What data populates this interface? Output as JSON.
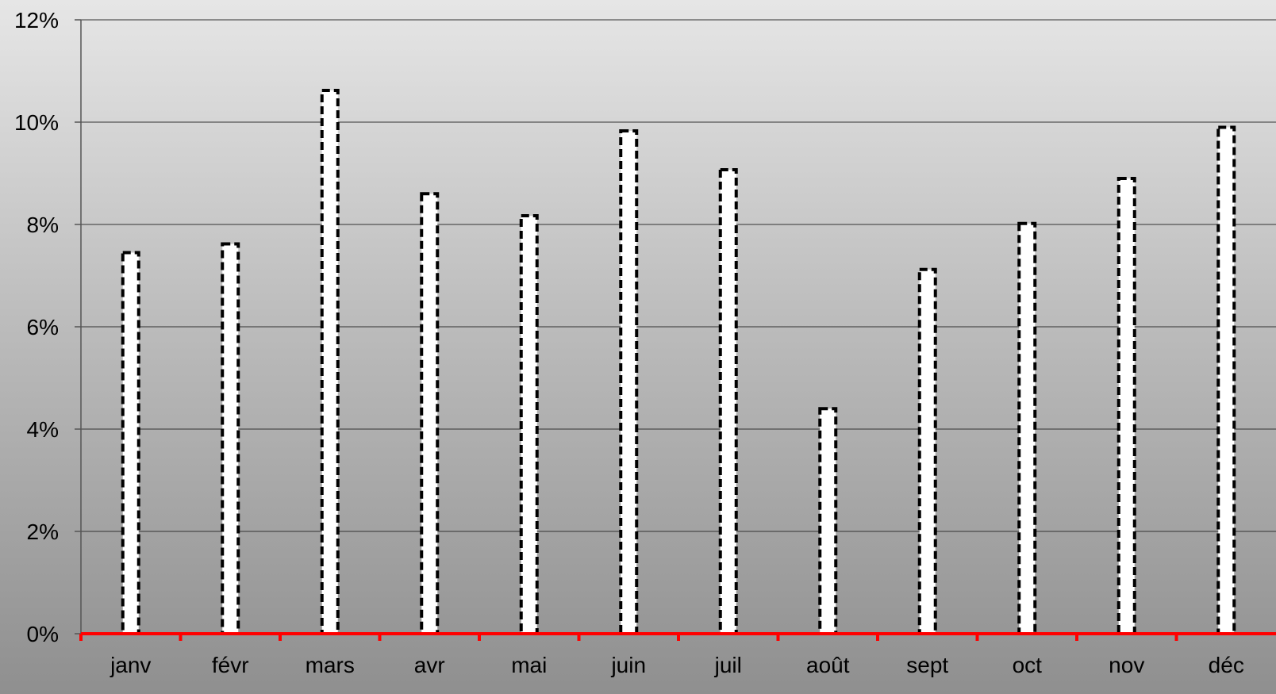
{
  "chart_data": {
    "type": "bar",
    "title": "",
    "xlabel": "",
    "ylabel": "",
    "categories": [
      "janv",
      "févr",
      "mars",
      "avr",
      "mai",
      "juin",
      "juil",
      "août",
      "sept",
      "oct",
      "nov",
      "déc"
    ],
    "values": [
      7.45,
      7.62,
      10.62,
      8.6,
      8.17,
      9.83,
      9.07,
      4.4,
      7.12,
      8.02,
      8.9,
      9.9
    ],
    "value_unit": "%",
    "ylim": [
      0,
      12
    ],
    "yticks": [
      0,
      2,
      4,
      6,
      8,
      10,
      12
    ],
    "ytick_labels": [
      "0%",
      "2%",
      "4%",
      "6%",
      "8%",
      "10%",
      "12%"
    ],
    "grid": true,
    "legend": "none",
    "colors": {
      "bar_fill": "#ffffff",
      "bar_outline": "#000000",
      "x_axis": "#ff0000",
      "y_axis": "#555555",
      "grid": "#333333",
      "background_top": "#e6e6e6",
      "background_bottom": "#8f8f8f"
    }
  }
}
